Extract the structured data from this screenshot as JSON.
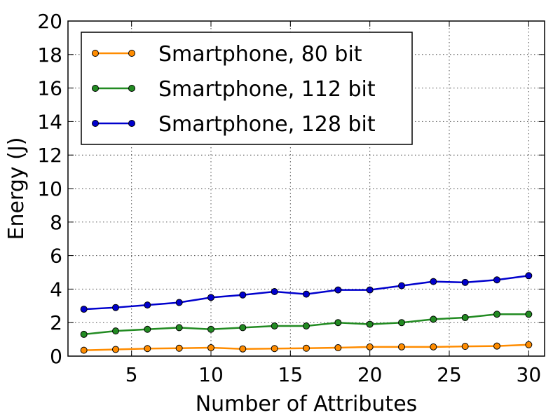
{
  "chart_data": {
    "type": "line",
    "xlabel": "Number of Attributes",
    "ylabel": "Energy (J)",
    "xlim": [
      1,
      31
    ],
    "ylim": [
      0,
      20
    ],
    "xticks": [
      5,
      10,
      15,
      20,
      25,
      30
    ],
    "yticks": [
      0,
      2,
      4,
      6,
      8,
      10,
      12,
      14,
      16,
      18,
      20
    ],
    "grid": true,
    "legend_position": "top-left",
    "x": [
      2,
      4,
      6,
      8,
      10,
      12,
      14,
      16,
      18,
      20,
      22,
      24,
      26,
      28,
      30
    ],
    "series": [
      {
        "name": "Smartphone, 80 bit",
        "color": "#ff8c00",
        "values": [
          0.35,
          0.4,
          0.45,
          0.47,
          0.5,
          0.43,
          0.45,
          0.47,
          0.5,
          0.55,
          0.55,
          0.55,
          0.58,
          0.6,
          0.68
        ]
      },
      {
        "name": "Smartphone, 112 bit",
        "color": "#228b22",
        "values": [
          1.3,
          1.5,
          1.6,
          1.7,
          1.6,
          1.7,
          1.8,
          1.8,
          2.0,
          1.9,
          2.0,
          2.2,
          2.3,
          2.5,
          2.5
        ]
      },
      {
        "name": "Smartphone, 128 bit",
        "color": "#0000cd",
        "values": [
          2.8,
          2.9,
          3.05,
          3.2,
          3.5,
          3.65,
          3.85,
          3.7,
          3.95,
          3.95,
          4.2,
          4.45,
          4.4,
          4.55,
          4.8
        ]
      }
    ]
  }
}
